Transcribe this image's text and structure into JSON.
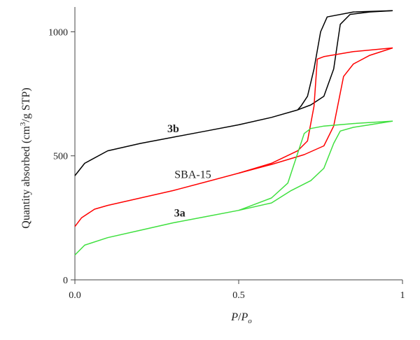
{
  "chart_data": {
    "type": "line",
    "xlabel_main": "P",
    "xlabel_slash": "/",
    "xlabel_denominator": "P",
    "xlabel_subscript": "o",
    "ylabel_before": "Quantity absorbed (cm",
    "ylabel_superscript": "3",
    "ylabel_after": "/g STP)",
    "xlim": [
      0,
      1
    ],
    "ylim": [
      0,
      1100
    ],
    "x_ticks": [
      {
        "value": 0,
        "label": "0.0"
      },
      {
        "value": 0.5,
        "label": "0.5"
      },
      {
        "value": 1,
        "label": "1"
      }
    ],
    "y_ticks": [
      {
        "value": 0,
        "label": "0"
      },
      {
        "value": 500,
        "label": "500"
      },
      {
        "value": 1000,
        "label": "1000"
      }
    ],
    "grid": false,
    "series": [
      {
        "name": "3b",
        "color": "#000000",
        "bold": true,
        "label_at": [
          0.3,
          595
        ],
        "adsorption": [
          [
            0,
            420
          ],
          [
            0.03,
            470
          ],
          [
            0.1,
            520
          ],
          [
            0.2,
            550
          ],
          [
            0.3,
            575
          ],
          [
            0.4,
            600
          ],
          [
            0.5,
            625
          ],
          [
            0.6,
            655
          ],
          [
            0.68,
            685
          ],
          [
            0.72,
            705
          ],
          [
            0.76,
            740
          ],
          [
            0.79,
            850
          ],
          [
            0.81,
            1030
          ],
          [
            0.84,
            1070
          ],
          [
            0.9,
            1080
          ],
          [
            0.97,
            1085
          ]
        ],
        "desorption": [
          [
            0.97,
            1085
          ],
          [
            0.85,
            1080
          ],
          [
            0.77,
            1060
          ],
          [
            0.75,
            1000
          ],
          [
            0.73,
            850
          ],
          [
            0.71,
            740
          ],
          [
            0.69,
            700
          ],
          [
            0.68,
            685
          ]
        ]
      },
      {
        "name": "SBA-15",
        "color": "#ff0000",
        "bold": false,
        "label_at": [
          0.36,
          410
        ],
        "adsorption": [
          [
            0,
            215
          ],
          [
            0.02,
            250
          ],
          [
            0.06,
            285
          ],
          [
            0.1,
            300
          ],
          [
            0.2,
            330
          ],
          [
            0.3,
            360
          ],
          [
            0.4,
            395
          ],
          [
            0.5,
            430
          ],
          [
            0.6,
            465
          ],
          [
            0.7,
            505
          ],
          [
            0.76,
            540
          ],
          [
            0.79,
            620
          ],
          [
            0.82,
            820
          ],
          [
            0.85,
            870
          ],
          [
            0.9,
            905
          ],
          [
            0.97,
            935
          ]
        ],
        "desorption": [
          [
            0.97,
            935
          ],
          [
            0.85,
            920
          ],
          [
            0.76,
            900
          ],
          [
            0.74,
            890
          ],
          [
            0.73,
            700
          ],
          [
            0.71,
            560
          ],
          [
            0.68,
            520
          ],
          [
            0.6,
            470
          ],
          [
            0.5,
            430
          ]
        ]
      },
      {
        "name": "3a",
        "color": "#3fe03f",
        "bold": true,
        "label_at": [
          0.32,
          255
        ],
        "adsorption": [
          [
            0,
            100
          ],
          [
            0.03,
            140
          ],
          [
            0.1,
            170
          ],
          [
            0.2,
            200
          ],
          [
            0.3,
            230
          ],
          [
            0.4,
            255
          ],
          [
            0.5,
            280
          ],
          [
            0.6,
            310
          ],
          [
            0.66,
            360
          ],
          [
            0.72,
            400
          ],
          [
            0.76,
            450
          ],
          [
            0.79,
            550
          ],
          [
            0.81,
            600
          ],
          [
            0.85,
            615
          ],
          [
            0.9,
            625
          ],
          [
            0.97,
            640
          ]
        ],
        "desorption": [
          [
            0.97,
            640
          ],
          [
            0.85,
            630
          ],
          [
            0.76,
            620
          ],
          [
            0.72,
            610
          ],
          [
            0.7,
            590
          ],
          [
            0.68,
            510
          ],
          [
            0.65,
            390
          ],
          [
            0.6,
            330
          ],
          [
            0.52,
            290
          ],
          [
            0.5,
            280
          ]
        ]
      }
    ]
  }
}
